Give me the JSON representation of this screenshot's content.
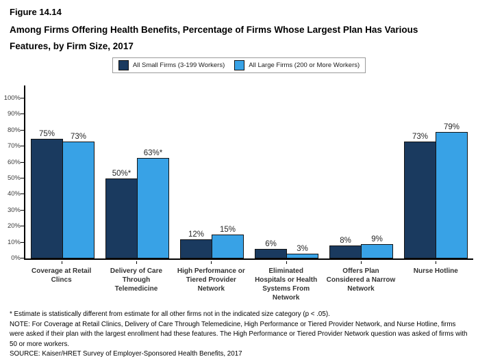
{
  "figure": {
    "label": "Figure 14.14",
    "title_line1": "Among Firms Offering Health Benefits, Percentage of Firms Whose Largest Plan Has Various",
    "title_line2": "Features, by Firm Size, 2017"
  },
  "colors": {
    "small_firms": "#1A3A5F",
    "large_firms": "#38A2E6",
    "bar_border": "#121212",
    "axis": "#000000"
  },
  "legend": {
    "items": [
      {
        "label": "All Small Firms (3-199 Workers)",
        "color": "#1A3A5F"
      },
      {
        "label": "All Large Firms (200 or More Workers)",
        "color": "#38A2E6"
      }
    ]
  },
  "chart_data": {
    "type": "bar",
    "categories": [
      "Coverage at Retail\nClincs",
      "Delivery of Care\nThrough\nTelemedicine",
      "High Performance or\nTiered Provider\nNetwork",
      "Eliminated\nHospitals or Health\nSystems From\nNetwork",
      "Offers Plan\nConsidered a Narrow\nNetwork",
      "Nurse Hotline"
    ],
    "series": [
      {
        "name": "All Small Firms (3-199 Workers)",
        "color": "#1A3A5F",
        "values": [
          75,
          50,
          12,
          6,
          8,
          73
        ],
        "labels": [
          "75%",
          "50%*",
          "12%",
          "6%",
          "8%",
          "73%"
        ]
      },
      {
        "name": "All Large Firms (200 or More Workers)",
        "color": "#38A2E6",
        "values": [
          73,
          63,
          15,
          3,
          9,
          79
        ],
        "labels": [
          "73%",
          "63%*",
          "15%",
          "3%",
          "9%",
          "79%"
        ]
      }
    ],
    "ylim": [
      0,
      100
    ],
    "yticks": [
      0,
      10,
      20,
      30,
      40,
      50,
      60,
      70,
      80,
      90,
      100
    ],
    "ytick_labels": [
      "0%",
      "10%",
      "20%",
      "30%",
      "40%",
      "50%",
      "60%",
      "70%",
      "80%",
      "90%",
      "100%"
    ],
    "grid": false,
    "legend_position": "top"
  },
  "footnotes": {
    "significance": "* Estimate is statistically different from estimate for all other firms not in the indicated size category (p < .05).",
    "note": "NOTE: For Coverage at Retail Clinics, Delivery of Care Through Telemedicine, High Performance or Tiered Provider Network, and Nurse Hotline, firms were asked if their plan with the largest enrollment had these features. The High Performance or Tiered Provider Network question was asked of firms with 50 or more workers.",
    "source": "SOURCE: Kaiser/HRET Survey of Employer-Sponsored Health Benefits, 2017"
  }
}
